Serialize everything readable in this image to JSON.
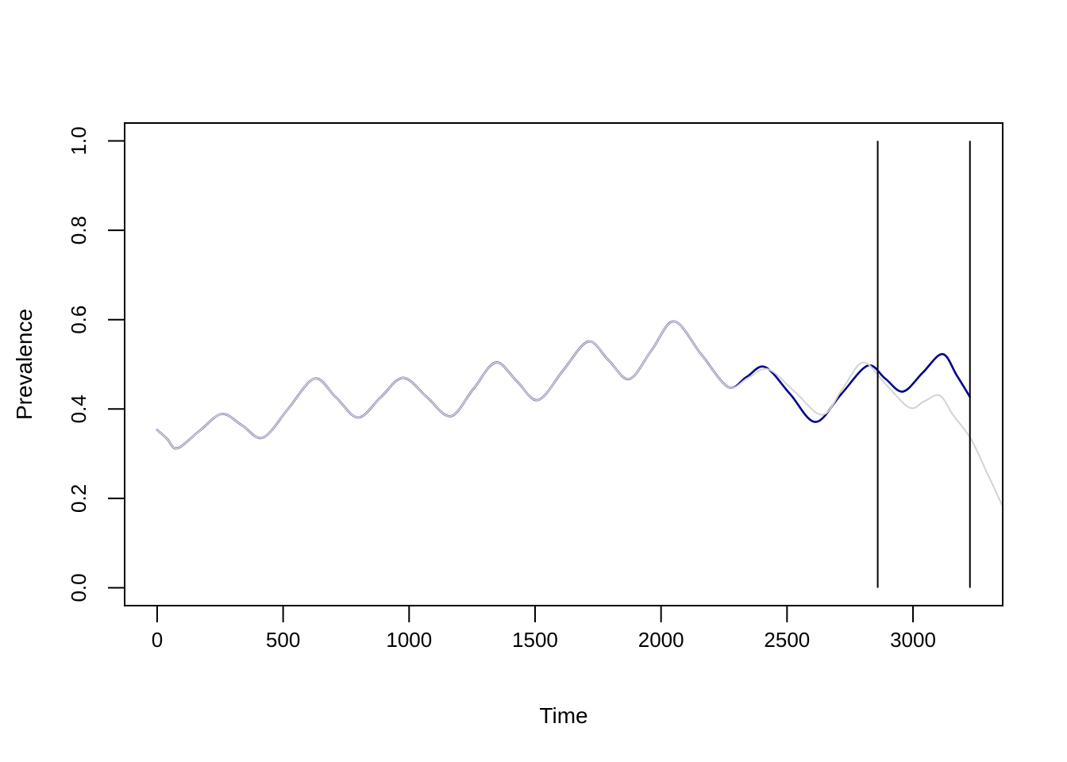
{
  "figure": {
    "background": "#ffffff",
    "axis_color": "#000000",
    "text_color": "#000000"
  },
  "chart_data": {
    "type": "line",
    "title": "",
    "xlabel": "Time",
    "ylabel": "Prevalence",
    "grid": false,
    "legend": "none",
    "xlim": [
      -129,
      3356
    ],
    "ylim": [
      -0.04,
      1.04
    ],
    "x_ticks": [
      0,
      500,
      1000,
      1500,
      2000,
      2500,
      3000
    ],
    "x_tick_labels": [
      "0",
      "500",
      "1000",
      "1500",
      "2000",
      "2500",
      "3000"
    ],
    "y_ticks": [
      0.0,
      0.2,
      0.4,
      0.6,
      0.8,
      1.0
    ],
    "y_tick_labels": [
      "0.0",
      "0.2",
      "0.4",
      "0.6",
      "0.8",
      "1.0"
    ],
    "vlines": [
      {
        "x": 2860,
        "y0": 0.0,
        "y1": 1.0,
        "color": "#000000",
        "width": 2
      },
      {
        "x": 3226,
        "y0": 0.0,
        "y1": 1.0,
        "color": "#000000",
        "width": 2
      }
    ],
    "series": [
      {
        "name": "dark-blue-line",
        "color": "#00008B",
        "width": 2.6,
        "points": [
          [
            0,
            0.353
          ],
          [
            40,
            0.333
          ],
          [
            80,
            0.312
          ],
          [
            168,
            0.351
          ],
          [
            257,
            0.389
          ],
          [
            338,
            0.363
          ],
          [
            420,
            0.336
          ],
          [
            522,
            0.402
          ],
          [
            625,
            0.468
          ],
          [
            711,
            0.425
          ],
          [
            798,
            0.381
          ],
          [
            887,
            0.426
          ],
          [
            976,
            0.47
          ],
          [
            1070,
            0.427
          ],
          [
            1165,
            0.384
          ],
          [
            1254,
            0.444
          ],
          [
            1344,
            0.504
          ],
          [
            1428,
            0.462
          ],
          [
            1512,
            0.42
          ],
          [
            1611,
            0.486
          ],
          [
            1711,
            0.551
          ],
          [
            1792,
            0.509
          ],
          [
            1874,
            0.467
          ],
          [
            1963,
            0.532
          ],
          [
            2052,
            0.596
          ],
          [
            2160,
            0.522
          ],
          [
            2267,
            0.449
          ],
          [
            2340,
            0.472
          ],
          [
            2413,
            0.494
          ],
          [
            2513,
            0.433
          ],
          [
            2613,
            0.371
          ],
          [
            2716,
            0.434
          ],
          [
            2820,
            0.497
          ],
          [
            2890,
            0.468
          ],
          [
            2960,
            0.439
          ],
          [
            3038,
            0.481
          ],
          [
            3117,
            0.523
          ],
          [
            3174,
            0.475
          ],
          [
            3226,
            0.427
          ]
        ]
      },
      {
        "name": "light-gray-line",
        "color": "#D3D3D3",
        "width": 2.0,
        "points": [
          [
            0,
            0.353
          ],
          [
            40,
            0.333
          ],
          [
            80,
            0.312
          ],
          [
            168,
            0.351
          ],
          [
            257,
            0.389
          ],
          [
            338,
            0.363
          ],
          [
            420,
            0.336
          ],
          [
            522,
            0.402
          ],
          [
            625,
            0.468
          ],
          [
            711,
            0.425
          ],
          [
            798,
            0.381
          ],
          [
            887,
            0.426
          ],
          [
            976,
            0.47
          ],
          [
            1070,
            0.427
          ],
          [
            1165,
            0.384
          ],
          [
            1254,
            0.444
          ],
          [
            1344,
            0.504
          ],
          [
            1428,
            0.462
          ],
          [
            1512,
            0.42
          ],
          [
            1611,
            0.486
          ],
          [
            1711,
            0.551
          ],
          [
            1792,
            0.509
          ],
          [
            1874,
            0.467
          ],
          [
            1963,
            0.532
          ],
          [
            2052,
            0.596
          ],
          [
            2160,
            0.522
          ],
          [
            2267,
            0.449
          ],
          [
            2346,
            0.47
          ],
          [
            2425,
            0.489
          ],
          [
            2532,
            0.438
          ],
          [
            2640,
            0.387
          ],
          [
            2721,
            0.446
          ],
          [
            2802,
            0.504
          ],
          [
            2894,
            0.454
          ],
          [
            2986,
            0.403
          ],
          [
            3044,
            0.417
          ],
          [
            3106,
            0.43
          ],
          [
            3160,
            0.386
          ],
          [
            3230,
            0.333
          ],
          [
            3295,
            0.256
          ],
          [
            3353,
            0.186
          ]
        ]
      }
    ]
  }
}
